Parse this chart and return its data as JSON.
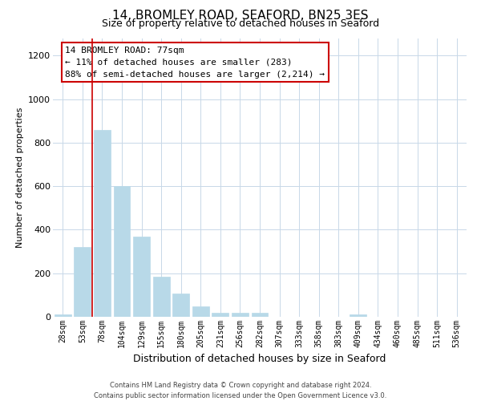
{
  "title": "14, BROMLEY ROAD, SEAFORD, BN25 3ES",
  "subtitle": "Size of property relative to detached houses in Seaford",
  "xlabel": "Distribution of detached houses by size in Seaford",
  "ylabel": "Number of detached properties",
  "bar_labels": [
    "28sqm",
    "53sqm",
    "78sqm",
    "104sqm",
    "129sqm",
    "155sqm",
    "180sqm",
    "205sqm",
    "231sqm",
    "256sqm",
    "282sqm",
    "307sqm",
    "333sqm",
    "358sqm",
    "383sqm",
    "409sqm",
    "434sqm",
    "460sqm",
    "485sqm",
    "511sqm",
    "536sqm"
  ],
  "bar_values": [
    12,
    320,
    860,
    600,
    370,
    185,
    105,
    48,
    20,
    20,
    20,
    0,
    0,
    0,
    0,
    12,
    0,
    0,
    0,
    0,
    0
  ],
  "bar_color": "#b8d9e8",
  "bar_edge_color": "#b8d9e8",
  "vline_color": "#cc0000",
  "vline_index": 2,
  "ylim": [
    0,
    1280
  ],
  "yticks": [
    0,
    200,
    400,
    600,
    800,
    1000,
    1200
  ],
  "annotation_title": "14 BROMLEY ROAD: 77sqm",
  "annotation_line1": "← 11% of detached houses are smaller (283)",
  "annotation_line2": "88% of semi-detached houses are larger (2,214) →",
  "annotation_box_color": "#ffffff",
  "annotation_box_edge_color": "#cc0000",
  "footer1": "Contains HM Land Registry data © Crown copyright and database right 2024.",
  "footer2": "Contains public sector information licensed under the Open Government Licence v3.0.",
  "background_color": "#ffffff",
  "grid_color": "#c8d8e8",
  "title_fontsize": 11,
  "subtitle_fontsize": 9,
  "ylabel_fontsize": 8,
  "xlabel_fontsize": 9,
  "tick_fontsize": 7,
  "annot_fontsize": 8,
  "footer_fontsize": 6
}
